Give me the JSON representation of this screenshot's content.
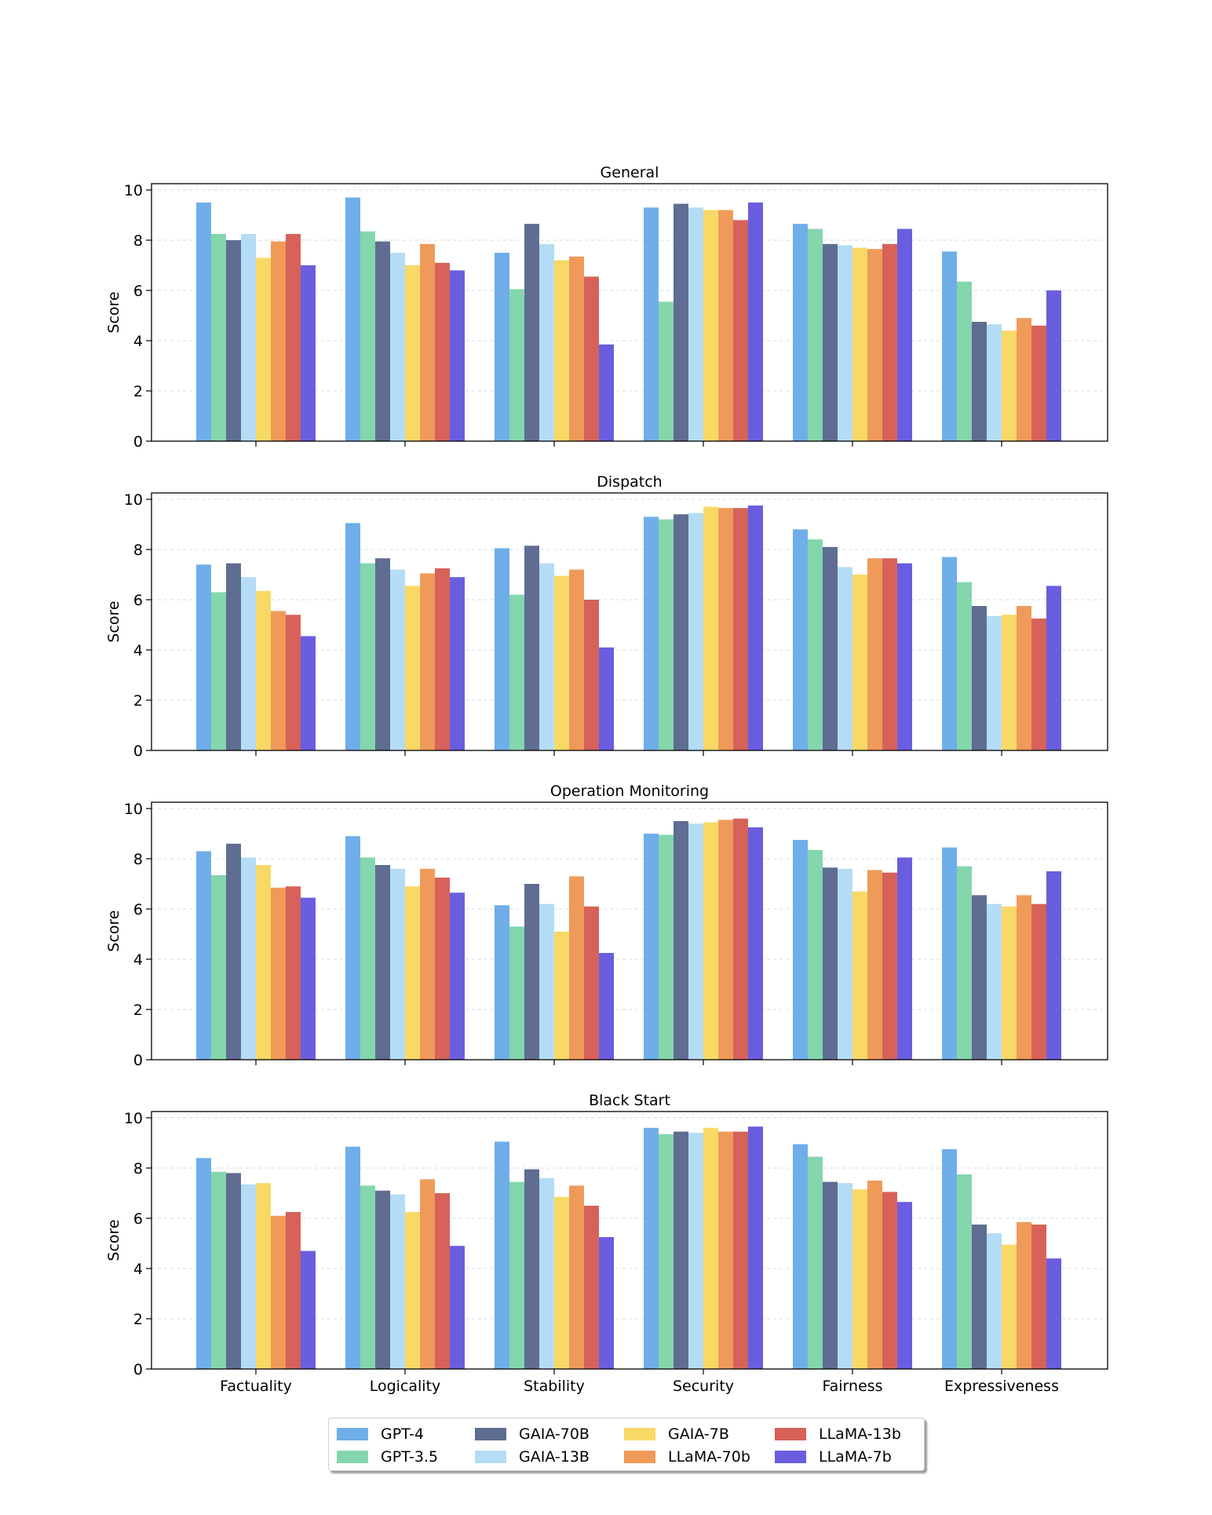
{
  "chart_data": {
    "type": "bar",
    "ylabel": "Score",
    "ylim": [
      0,
      10
    ],
    "yticks": [
      "0",
      "2",
      "4",
      "6",
      "8",
      "10"
    ],
    "categories": [
      "Factuality",
      "Logicality",
      "Stability",
      "Security",
      "Fairness",
      "Expressiveness"
    ],
    "series_names": [
      "GPT-4",
      "GPT-3.5",
      "GAIA-70B",
      "GAIA-13B",
      "GAIA-7B",
      "LLaMA-70b",
      "LLaMA-13b",
      "LLaMA-7b"
    ],
    "series_colors": [
      "#6faee9",
      "#84d6ad",
      "#5e6d91",
      "#b4dcf5",
      "#f8d966",
      "#ef9a59",
      "#d6625a",
      "#6a5ddf"
    ],
    "panels": [
      {
        "title": "General",
        "series": [
          {
            "name": "GPT-4",
            "values": [
              9.5,
              9.7,
              7.5,
              9.3,
              8.65,
              7.55
            ]
          },
          {
            "name": "GPT-3.5",
            "values": [
              8.25,
              8.35,
              6.05,
              5.55,
              8.45,
              6.35
            ]
          },
          {
            "name": "GAIA-70B",
            "values": [
              8.0,
              7.95,
              8.65,
              9.45,
              7.85,
              4.75
            ]
          },
          {
            "name": "GAIA-13B",
            "values": [
              8.25,
              7.5,
              7.85,
              9.3,
              7.8,
              4.65
            ]
          },
          {
            "name": "GAIA-7B",
            "values": [
              7.3,
              7.0,
              7.2,
              9.2,
              7.7,
              4.4
            ]
          },
          {
            "name": "LLaMA-70b",
            "values": [
              7.95,
              7.85,
              7.35,
              9.2,
              7.65,
              4.9
            ]
          },
          {
            "name": "LLaMA-13b",
            "values": [
              8.25,
              7.1,
              6.55,
              8.8,
              7.85,
              4.6
            ]
          },
          {
            "name": "LLaMA-7b",
            "values": [
              7.0,
              6.8,
              3.85,
              9.5,
              8.45,
              6.0
            ]
          }
        ]
      },
      {
        "title": "Dispatch",
        "series": [
          {
            "name": "GPT-4",
            "values": [
              7.4,
              9.05,
              8.05,
              9.3,
              8.8,
              7.7
            ]
          },
          {
            "name": "GPT-3.5",
            "values": [
              6.3,
              7.45,
              6.2,
              9.2,
              8.4,
              6.7
            ]
          },
          {
            "name": "GAIA-70B",
            "values": [
              7.45,
              7.65,
              8.15,
              9.4,
              8.1,
              5.75
            ]
          },
          {
            "name": "GAIA-13B",
            "values": [
              6.9,
              7.2,
              7.45,
              9.45,
              7.3,
              5.35
            ]
          },
          {
            "name": "GAIA-7B",
            "values": [
              6.35,
              6.55,
              6.95,
              9.7,
              7.0,
              5.4
            ]
          },
          {
            "name": "LLaMA-70b",
            "values": [
              5.55,
              7.05,
              7.2,
              9.65,
              7.65,
              5.75
            ]
          },
          {
            "name": "LLaMA-13b",
            "values": [
              5.4,
              7.25,
              6.0,
              9.65,
              7.65,
              5.25
            ]
          },
          {
            "name": "LLaMA-7b",
            "values": [
              4.55,
              6.9,
              4.1,
              9.75,
              7.45,
              6.55
            ]
          }
        ]
      },
      {
        "title": "Operation Monitoring",
        "series": [
          {
            "name": "GPT-4",
            "values": [
              8.3,
              8.9,
              6.15,
              9.0,
              8.75,
              8.45
            ]
          },
          {
            "name": "GPT-3.5",
            "values": [
              7.35,
              8.05,
              5.3,
              8.95,
              8.35,
              7.7
            ]
          },
          {
            "name": "GAIA-70B",
            "values": [
              8.6,
              7.75,
              7.0,
              9.5,
              7.65,
              6.55
            ]
          },
          {
            "name": "GAIA-13B",
            "values": [
              8.05,
              7.6,
              6.2,
              9.4,
              7.6,
              6.2
            ]
          },
          {
            "name": "GAIA-7B",
            "values": [
              7.75,
              6.9,
              5.1,
              9.45,
              6.7,
              6.1
            ]
          },
          {
            "name": "LLaMA-70b",
            "values": [
              6.85,
              7.6,
              7.3,
              9.55,
              7.55,
              6.55
            ]
          },
          {
            "name": "LLaMA-13b",
            "values": [
              6.9,
              7.25,
              6.1,
              9.6,
              7.45,
              6.2
            ]
          },
          {
            "name": "LLaMA-7b",
            "values": [
              6.45,
              6.65,
              4.25,
              9.25,
              8.05,
              7.5
            ]
          }
        ]
      },
      {
        "title": "Black Start",
        "series": [
          {
            "name": "GPT-4",
            "values": [
              8.4,
              8.85,
              9.05,
              9.6,
              8.95,
              8.75
            ]
          },
          {
            "name": "GPT-3.5",
            "values": [
              7.85,
              7.3,
              7.45,
              9.35,
              8.45,
              7.75
            ]
          },
          {
            "name": "GAIA-70B",
            "values": [
              7.8,
              7.1,
              7.95,
              9.45,
              7.45,
              5.75
            ]
          },
          {
            "name": "GAIA-13B",
            "values": [
              7.35,
              6.95,
              7.6,
              9.4,
              7.4,
              5.4
            ]
          },
          {
            "name": "GAIA-7B",
            "values": [
              7.4,
              6.25,
              6.85,
              9.6,
              7.15,
              4.95
            ]
          },
          {
            "name": "LLaMA-70b",
            "values": [
              6.1,
              7.55,
              7.3,
              9.45,
              7.5,
              5.85
            ]
          },
          {
            "name": "LLaMA-13b",
            "values": [
              6.25,
              7.0,
              6.5,
              9.45,
              7.05,
              5.75
            ]
          },
          {
            "name": "LLaMA-7b",
            "values": [
              4.7,
              4.9,
              5.25,
              9.65,
              6.65,
              4.4
            ]
          }
        ]
      }
    ]
  },
  "legend": {
    "items": [
      {
        "label": "GPT-4",
        "color": "#6faee9"
      },
      {
        "label": "GPT-3.5",
        "color": "#84d6ad"
      },
      {
        "label": "GAIA-70B",
        "color": "#5e6d91"
      },
      {
        "label": "GAIA-13B",
        "color": "#b4dcf5"
      },
      {
        "label": "GAIA-7B",
        "color": "#f8d966"
      },
      {
        "label": "LLaMA-70b",
        "color": "#ef9a59"
      },
      {
        "label": "LLaMA-13b",
        "color": "#d6625a"
      },
      {
        "label": "LLaMA-7b",
        "color": "#6a5ddf"
      }
    ]
  }
}
